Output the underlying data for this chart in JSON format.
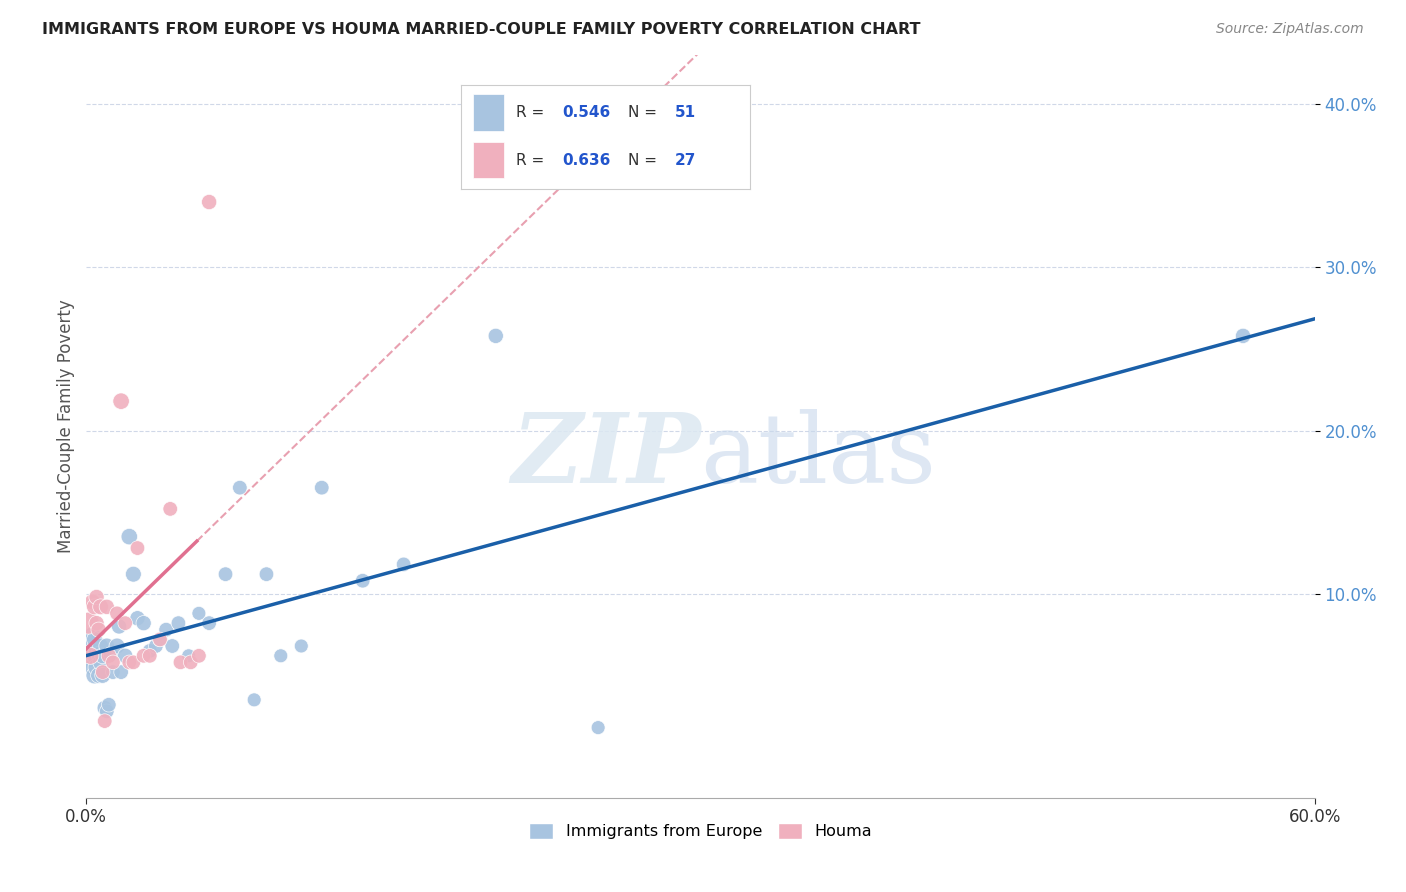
{
  "title": "IMMIGRANTS FROM EUROPE VS HOUMA MARRIED-COUPLE FAMILY POVERTY CORRELATION CHART",
  "source": "Source: ZipAtlas.com",
  "ylabel": "Married-Couple Family Poverty",
  "xlim": [
    0.0,
    0.6
  ],
  "ylim": [
    -0.025,
    0.43
  ],
  "xtick_positions": [
    0.0,
    0.6
  ],
  "xtick_labels": [
    "0.0%",
    "60.0%"
  ],
  "ytick_positions": [
    0.1,
    0.2,
    0.3,
    0.4
  ],
  "ytick_labels": [
    "10.0%",
    "20.0%",
    "30.0%",
    "40.0%"
  ],
  "legend_r1": "R = 0.546",
  "legend_n1": "N = 51",
  "legend_r2": "R = 0.636",
  "legend_n2": "N = 27",
  "series1_color": "#a8c4e0",
  "series2_color": "#f0b0be",
  "line1_color": "#1a5fa8",
  "line2_color": "#e07090",
  "line_dashed_color": "#e8a0b0",
  "watermark_zip": "ZIP",
  "watermark_atlas": "atlas",
  "background_color": "#ffffff",
  "grid_color": "#d0d8e8",
  "series1_x": [
    0.002,
    0.002,
    0.003,
    0.003,
    0.003,
    0.004,
    0.004,
    0.004,
    0.005,
    0.005,
    0.006,
    0.006,
    0.007,
    0.007,
    0.008,
    0.008,
    0.009,
    0.01,
    0.01,
    0.011,
    0.012,
    0.013,
    0.015,
    0.016,
    0.017,
    0.019,
    0.021,
    0.023,
    0.025,
    0.028,
    0.031,
    0.034,
    0.036,
    0.039,
    0.042,
    0.045,
    0.05,
    0.055,
    0.06,
    0.068,
    0.075,
    0.082,
    0.088,
    0.095,
    0.105,
    0.115,
    0.135,
    0.155,
    0.2,
    0.25,
    0.565
  ],
  "series1_y": [
    0.06,
    0.07,
    0.055,
    0.065,
    0.075,
    0.05,
    0.062,
    0.072,
    0.055,
    0.065,
    0.05,
    0.063,
    0.058,
    0.068,
    0.05,
    0.062,
    0.03,
    0.068,
    0.028,
    0.032,
    0.063,
    0.052,
    0.068,
    0.08,
    0.052,
    0.062,
    0.135,
    0.112,
    0.085,
    0.082,
    0.065,
    0.068,
    0.072,
    0.078,
    0.068,
    0.082,
    0.062,
    0.088,
    0.082,
    0.112,
    0.165,
    0.035,
    0.112,
    0.062,
    0.068,
    0.165,
    0.108,
    0.118,
    0.258,
    0.018,
    0.258
  ],
  "series1_sizes": [
    200,
    150,
    150,
    130,
    130,
    150,
    130,
    130,
    150,
    130,
    130,
    130,
    130,
    130,
    130,
    130,
    120,
    130,
    110,
    110,
    120,
    110,
    130,
    120,
    110,
    120,
    140,
    130,
    120,
    120,
    110,
    110,
    110,
    110,
    110,
    110,
    100,
    100,
    110,
    110,
    110,
    100,
    110,
    100,
    100,
    110,
    110,
    110,
    120,
    100,
    120
  ],
  "series2_x": [
    0.001,
    0.002,
    0.003,
    0.004,
    0.005,
    0.005,
    0.006,
    0.007,
    0.008,
    0.009,
    0.01,
    0.011,
    0.013,
    0.015,
    0.017,
    0.019,
    0.021,
    0.023,
    0.025,
    0.028,
    0.031,
    0.036,
    0.041,
    0.046,
    0.051,
    0.055,
    0.06
  ],
  "series2_y": [
    0.082,
    0.062,
    0.095,
    0.092,
    0.082,
    0.098,
    0.078,
    0.092,
    0.052,
    0.022,
    0.092,
    0.062,
    0.058,
    0.088,
    0.218,
    0.082,
    0.058,
    0.058,
    0.128,
    0.062,
    0.062,
    0.072,
    0.152,
    0.058,
    0.058,
    0.062,
    0.34
  ],
  "series2_sizes": [
    250,
    150,
    130,
    130,
    120,
    120,
    120,
    130,
    110,
    110,
    120,
    120,
    110,
    110,
    140,
    110,
    110,
    110,
    110,
    110,
    110,
    110,
    110,
    110,
    110,
    110,
    120
  ],
  "line1_x_start": 0.0,
  "line1_x_end": 0.6,
  "line2_x_solid_start": 0.0,
  "line2_x_solid_end": 0.054,
  "line2_x_dash_start": 0.054,
  "line2_x_dash_end": 0.5
}
